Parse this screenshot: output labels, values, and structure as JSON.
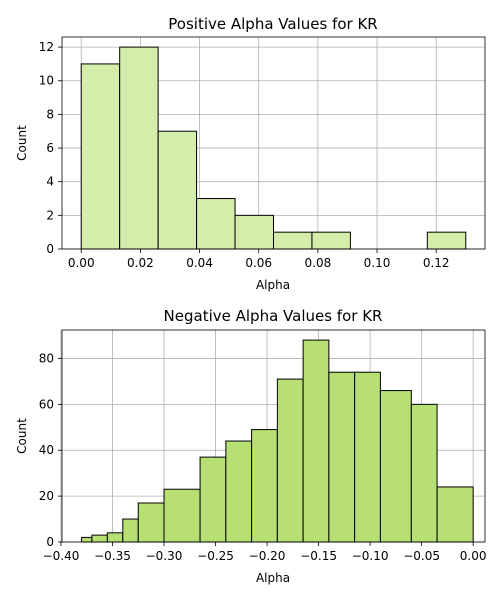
{
  "chart_data": [
    {
      "type": "bar",
      "title": "Positive Alpha Values for KR",
      "xlabel": "Alpha",
      "ylabel": "Count",
      "xlim": [
        -0.0065,
        0.1365
      ],
      "ylim": [
        0,
        12.6
      ],
      "xticks": [
        0.0,
        0.02,
        0.04,
        0.06,
        0.08,
        0.1,
        0.12
      ],
      "xtick_labels": [
        "0.00",
        "0.02",
        "0.04",
        "0.06",
        "0.08",
        "0.10",
        "0.12"
      ],
      "yticks": [
        0,
        2,
        4,
        6,
        8,
        10,
        12
      ],
      "ytick_labels": [
        "0",
        "2",
        "4",
        "6",
        "8",
        "10",
        "12"
      ],
      "grid": true,
      "color": "#d4edaa",
      "bins": [
        {
          "x0": 0.0,
          "x1": 0.013,
          "count": 11
        },
        {
          "x0": 0.013,
          "x1": 0.026,
          "count": 12
        },
        {
          "x0": 0.026,
          "x1": 0.039,
          "count": 7
        },
        {
          "x0": 0.039,
          "x1": 0.052,
          "count": 3
        },
        {
          "x0": 0.052,
          "x1": 0.065,
          "count": 2
        },
        {
          "x0": 0.065,
          "x1": 0.078,
          "count": 1
        },
        {
          "x0": 0.078,
          "x1": 0.091,
          "count": 1
        },
        {
          "x0": 0.091,
          "x1": 0.104,
          "count": 0
        },
        {
          "x0": 0.104,
          "x1": 0.117,
          "count": 0
        },
        {
          "x0": 0.117,
          "x1": 0.13,
          "count": 1
        }
      ]
    },
    {
      "type": "bar",
      "title": "Negative Alpha Values for KR",
      "xlabel": "Alpha",
      "ylabel": "Count",
      "xlim": [
        -0.399,
        0.0115
      ],
      "ylim": [
        0,
        92.4
      ],
      "xticks": [
        -0.4,
        -0.35,
        -0.3,
        -0.25,
        -0.2,
        -0.15,
        -0.1,
        -0.05,
        0.0
      ],
      "xtick_labels": [
        "−0.40",
        "−0.35",
        "−0.30",
        "−0.25",
        "−0.20",
        "−0.15",
        "−0.10",
        "−0.05",
        "0.00"
      ],
      "yticks": [
        0,
        20,
        40,
        60,
        80
      ],
      "ytick_labels": [
        "0",
        "20",
        "40",
        "60",
        "80"
      ],
      "grid": true,
      "color": "#b8df74",
      "bins": [
        {
          "x0": -0.38,
          "x1": -0.37,
          "count": 2
        },
        {
          "x0": -0.37,
          "x1": -0.355,
          "count": 3
        },
        {
          "x0": -0.355,
          "x1": -0.34,
          "count": 4
        },
        {
          "x0": -0.34,
          "x1": -0.325,
          "count": 10
        },
        {
          "x0": -0.325,
          "x1": -0.3,
          "count": 17
        },
        {
          "x0": -0.3,
          "x1": -0.265,
          "count": 23
        },
        {
          "x0": -0.265,
          "x1": -0.24,
          "count": 37
        },
        {
          "x0": -0.24,
          "x1": -0.215,
          "count": 44
        },
        {
          "x0": -0.215,
          "x1": -0.19,
          "count": 49
        },
        {
          "x0": -0.19,
          "x1": -0.165,
          "count": 71
        },
        {
          "x0": -0.165,
          "x1": -0.14,
          "count": 88
        },
        {
          "x0": -0.14,
          "x1": -0.115,
          "count": 74
        },
        {
          "x0": -0.115,
          "x1": -0.09,
          "count": 74
        },
        {
          "x0": -0.09,
          "x1": -0.06,
          "count": 66
        },
        {
          "x0": -0.06,
          "x1": -0.035,
          "count": 60
        },
        {
          "x0": -0.035,
          "x1": 0.0,
          "count": 24
        }
      ]
    }
  ]
}
